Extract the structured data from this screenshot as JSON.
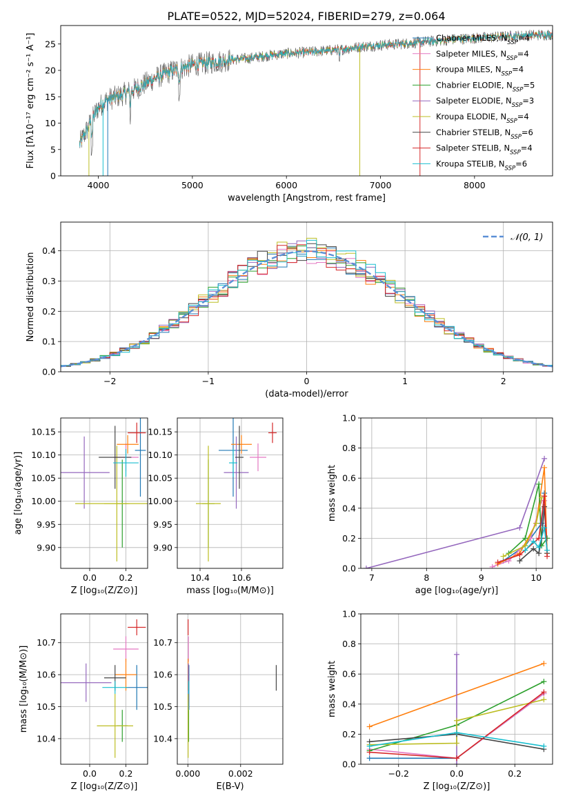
{
  "title": "PLATE=0522, MJD=52024, FIBERID=279, z=0.064",
  "colors": {
    "chabrier_miles": "#1f77b4",
    "salpeter_miles": "#e377c2",
    "kroupa_miles": "#ff7f0e",
    "chabrier_elodie": "#2ca02c",
    "salpeter_elodie": "#9467bd",
    "kroupa_elodie": "#bcbd22",
    "chabrier_stelib": "#444444",
    "salpeter_stelib": "#d62728",
    "kroupa_stelib": "#17becf"
  },
  "chart_data": [
    {
      "id": "spectrum",
      "type": "line",
      "xlabel": "wavelength [Angstrom, rest frame]",
      "ylabel": "Flux [fλ10⁻¹⁷ erg cm⁻² s⁻¹ A⁻¹]",
      "xlim": [
        3600,
        8830
      ],
      "ylim": [
        0,
        28.5
      ],
      "xticks": [
        4000,
        5000,
        6000,
        7000,
        8000
      ],
      "yticks": [
        0,
        5,
        10,
        15,
        20,
        25
      ],
      "legend_position": "right",
      "continuum": {
        "x": [
          3800,
          3900,
          4000,
          4100,
          4200,
          4400,
          4600,
          4800,
          5000,
          5200,
          5400,
          5600,
          5800,
          6000,
          6200,
          6400,
          6600,
          6800,
          7000,
          7200,
          7400,
          7600,
          7800,
          8000,
          8200,
          8400,
          8800
        ],
        "y": [
          6,
          9.5,
          13,
          14.5,
          15,
          16.5,
          18.5,
          20,
          21,
          21.5,
          22,
          22.3,
          22.8,
          23.2,
          23.4,
          23.7,
          24,
          24.5,
          24.8,
          25,
          25.3,
          25.6,
          25.9,
          26.1,
          26.3,
          26.5,
          26.8
        ]
      },
      "series": [
        {
          "key": "chabrier_miles",
          "name": "Chabrier MILES, N",
          "sub": "SSP",
          "eq": "=4"
        },
        {
          "key": "salpeter_miles",
          "name": "Salpeter MILES, N",
          "sub": "SSP",
          "eq": "=4"
        },
        {
          "key": "kroupa_miles",
          "name": "Kroupa MILES, N",
          "sub": "SSP",
          "eq": "=4"
        },
        {
          "key": "chabrier_elodie",
          "name": "Chabrier ELODIE, N",
          "sub": "SSP",
          "eq": "=5"
        },
        {
          "key": "salpeter_elodie",
          "name": "Salpeter ELODIE, N",
          "sub": "SSP",
          "eq": "=3"
        },
        {
          "key": "kroupa_elodie",
          "name": "Kroupa ELODIE, N",
          "sub": "SSP",
          "eq": "=4"
        },
        {
          "key": "chabrier_stelib",
          "name": "Chabrier STELIB, N",
          "sub": "SSP",
          "eq": "=6"
        },
        {
          "key": "salpeter_stelib",
          "name": "Salpeter STELIB, N",
          "sub": "SSP",
          "eq": "=4"
        },
        {
          "key": "kroupa_stelib",
          "name": "Kroupa STELIB, N",
          "sub": "SSP",
          "eq": "=6"
        }
      ]
    },
    {
      "id": "residuals",
      "type": "line",
      "xlabel": "(data-model)/error",
      "ylabel": "Normed distribution",
      "xlim": [
        -2.5,
        2.5
      ],
      "ylim": [
        0,
        0.495
      ],
      "xticks": [
        -2,
        -1,
        0,
        1,
        2
      ],
      "yticks": [
        0.0,
        0.1,
        0.2,
        0.3,
        0.4
      ],
      "grid": true,
      "bin_width": 0.1,
      "reference": {
        "name": "𝒩(0, 1)",
        "mean": 0,
        "sigma": 1,
        "color": "#5b8fd6"
      },
      "legend_position": "top-right"
    },
    {
      "id": "age_vs_z",
      "type": "scatter",
      "xlabel": "Z [log₁₀(Z/Z⊙)]",
      "ylabel": "age  [log₁₀(age/yr)]",
      "xlim": [
        -0.16,
        0.32
      ],
      "ylim": [
        9.855,
        10.18
      ],
      "xticks": [
        0.0,
        0.2
      ],
      "yticks": [
        9.9,
        9.95,
        10.0,
        10.05,
        10.1,
        10.15
      ],
      "grid": true,
      "points": [
        {
          "key": "chabrier_miles",
          "x": 0.28,
          "xerr": 0.03,
          "y": 10.11,
          "yerr": 0.1
        },
        {
          "key": "salpeter_miles",
          "x": 0.2,
          "xerr": 0.07,
          "y": 10.095,
          "yerr": 0.03
        },
        {
          "key": "kroupa_miles",
          "x": 0.21,
          "xerr": 0.06,
          "y": 10.123,
          "yerr": 0.02
        },
        {
          "key": "chabrier_elodie",
          "x": 0.18,
          "xerr": 0.03,
          "y": 9.995,
          "yerr": 0.095
        },
        {
          "key": "salpeter_elodie",
          "x": -0.03,
          "xerr": 0.14,
          "y": 10.062,
          "yerr": 0.078
        },
        {
          "key": "kroupa_elodie",
          "x": 0.15,
          "xerr": 0.07,
          "y": 9.995,
          "yerr": 0.125
        },
        {
          "key": "chabrier_stelib",
          "x": 0.14,
          "xerr": 0.09,
          "y": 10.095,
          "yerr": 0.068
        },
        {
          "key": "salpeter_stelib",
          "x": 0.26,
          "xerr": 0.05,
          "y": 10.148,
          "yerr": 0.022
        },
        {
          "key": "kroupa_stelib",
          "x": 0.2,
          "xerr": 0.07,
          "y": 10.083,
          "yerr": 0.03
        },
        {
          "key": "kroupa_elodie",
          "x": 0.15,
          "xerr": 0.23,
          "y": 9.995,
          "yerr": 0.0
        }
      ]
    },
    {
      "id": "age_vs_mass",
      "type": "scatter",
      "xlabel": "mass [log₁₀(M/M⊙)]",
      "xlim": [
        10.29,
        10.8
      ],
      "ylim": [
        9.855,
        10.18
      ],
      "xticks": [
        10.4,
        10.6
      ],
      "yticks": [
        9.9,
        9.95,
        10.0,
        10.05,
        10.1,
        10.15
      ],
      "grid": true,
      "points": [
        {
          "key": "chabrier_miles",
          "x": 10.56,
          "xerr": 0.07,
          "y": 10.11,
          "yerr": 0.1
        },
        {
          "key": "salpeter_miles",
          "x": 10.68,
          "xerr": 0.04,
          "y": 10.095,
          "yerr": 0.03
        },
        {
          "key": "kroupa_miles",
          "x": 10.6,
          "xerr": 0.05,
          "y": 10.123,
          "yerr": 0.02
        },
        {
          "key": "chabrier_elodie",
          "x": 10.44,
          "xerr": 0.03,
          "y": 9.995,
          "yerr": 0.095
        },
        {
          "key": "salpeter_elodie",
          "x": 10.575,
          "xerr": 0.06,
          "y": 10.062,
          "yerr": 0.078
        },
        {
          "key": "kroupa_elodie",
          "x": 10.44,
          "xerr": 0.06,
          "y": 9.995,
          "yerr": 0.125
        },
        {
          "key": "chabrier_stelib",
          "x": 10.59,
          "xerr": 0.02,
          "y": 10.095,
          "yerr": 0.068
        },
        {
          "key": "salpeter_stelib",
          "x": 10.75,
          "xerr": 0.02,
          "y": 10.148,
          "yerr": 0.022
        },
        {
          "key": "kroupa_stelib",
          "x": 10.56,
          "xerr": 0.02,
          "y": 10.083,
          "yerr": 0.03
        }
      ]
    },
    {
      "id": "weight_vs_age",
      "type": "line",
      "xlabel": "age  [log₁₀(age/yr)]",
      "ylabel": "mass weight",
      "xlim": [
        6.8,
        10.3
      ],
      "ylim": [
        0,
        1.0
      ],
      "xticks": [
        7,
        8,
        9,
        10
      ],
      "yticks": [
        0.0,
        0.2,
        0.4,
        0.6,
        0.8,
        1.0
      ],
      "grid": true,
      "series": [
        {
          "key": "chabrier_miles",
          "x": [
            9.4,
            9.8,
            10.1,
            10.15
          ],
          "y": [
            0.05,
            0.15,
            0.3,
            0.5
          ]
        },
        {
          "key": "salpeter_miles",
          "x": [
            9.2,
            9.5,
            9.9,
            10.1,
            10.15
          ],
          "y": [
            0.01,
            0.05,
            0.2,
            0.45,
            0.45
          ]
        },
        {
          "key": "kroupa_miles",
          "x": [
            9.3,
            9.7,
            10.0,
            10.15,
            10.2
          ],
          "y": [
            0.03,
            0.1,
            0.3,
            0.67,
            0.1
          ]
        },
        {
          "key": "chabrier_elodie",
          "x": [
            9.5,
            9.8,
            10.05,
            10.1,
            10.2
          ],
          "y": [
            0.1,
            0.2,
            0.56,
            0.15,
            0.2
          ]
        },
        {
          "key": "salpeter_elodie",
          "x": [
            6.9,
            9.7,
            10.15
          ],
          "y": [
            0.0,
            0.27,
            0.73
          ]
        },
        {
          "key": "kroupa_elodie",
          "x": [
            9.4,
            9.8,
            10.0,
            10.1
          ],
          "y": [
            0.08,
            0.15,
            0.3,
            0.47
          ]
        },
        {
          "key": "chabrier_stelib",
          "x": [
            9.7,
            9.95,
            10.05,
            10.1,
            10.15,
            10.2
          ],
          "y": [
            0.05,
            0.13,
            0.1,
            0.2,
            0.41,
            0.1
          ]
        },
        {
          "key": "salpeter_stelib",
          "x": [
            9.3,
            9.7,
            10.05,
            10.15,
            10.2
          ],
          "y": [
            0.04,
            0.09,
            0.2,
            0.48,
            0.08
          ]
        },
        {
          "key": "kroupa_stelib",
          "x": [
            9.8,
            9.95,
            10.05,
            10.15,
            10.2
          ],
          "y": [
            0.12,
            0.18,
            0.14,
            0.27,
            0.12
          ]
        }
      ]
    },
    {
      "id": "mass_vs_z",
      "type": "scatter",
      "xlabel": "Z [log₁₀(Z/Z⊙)]",
      "ylabel": "mass [log₁₀(M/M⊙)]",
      "xlim": [
        -0.16,
        0.32
      ],
      "ylim": [
        10.32,
        10.79
      ],
      "xticks": [
        0.0,
        0.2
      ],
      "yticks": [
        10.4,
        10.5,
        10.6,
        10.7
      ],
      "grid": true,
      "points": [
        {
          "key": "chabrier_miles",
          "x": 0.26,
          "xerr": 0.06,
          "y": 10.56,
          "yerr": 0.07
        },
        {
          "key": "salpeter_miles",
          "x": 0.2,
          "xerr": 0.07,
          "y": 10.68,
          "yerr": 0.04
        },
        {
          "key": "kroupa_miles",
          "x": 0.2,
          "xerr": 0.06,
          "y": 10.6,
          "yerr": 0.05
        },
        {
          "key": "chabrier_elodie",
          "x": 0.18,
          "xerr": 0.03,
          "y": 10.44,
          "yerr": 0.05
        },
        {
          "key": "salpeter_elodie",
          "x": -0.02,
          "xerr": 0.14,
          "y": 10.575,
          "yerr": 0.06
        },
        {
          "key": "kroupa_elodie",
          "x": 0.14,
          "xerr": 0.1,
          "y": 10.44,
          "yerr": 0.1
        },
        {
          "key": "chabrier_stelib",
          "x": 0.14,
          "xerr": 0.06,
          "y": 10.59,
          "yerr": 0.04
        },
        {
          "key": "salpeter_stelib",
          "x": 0.26,
          "xerr": 0.05,
          "y": 10.748,
          "yerr": 0.025
        },
        {
          "key": "kroupa_stelib",
          "x": 0.14,
          "xerr": 0.07,
          "y": 10.56,
          "yerr": 0.02
        }
      ]
    },
    {
      "id": "mass_vs_ebv",
      "type": "scatter",
      "xlabel": "E(B-V)",
      "xlim": [
        -0.0004,
        0.0036
      ],
      "ylim": [
        10.32,
        10.79
      ],
      "xticks": [
        0.0,
        0.002
      ],
      "xtick_labels": [
        "0.000",
        "0.002"
      ],
      "yticks": [
        10.4,
        10.5,
        10.6,
        10.7
      ],
      "grid": true,
      "points": [
        {
          "key": "chabrier_miles",
          "x": 4e-05,
          "xerr": 0,
          "y": 10.56,
          "yerr": 0.07
        },
        {
          "key": "salpeter_miles",
          "x": 2e-05,
          "xerr": 0,
          "y": 10.68,
          "yerr": 0.04
        },
        {
          "key": "kroupa_miles",
          "x": 1e-05,
          "xerr": 0,
          "y": 10.6,
          "yerr": 0.05
        },
        {
          "key": "chabrier_elodie",
          "x": 3e-05,
          "xerr": 0,
          "y": 10.44,
          "yerr": 0.05
        },
        {
          "key": "salpeter_elodie",
          "x": 2e-05,
          "xerr": 0,
          "y": 10.575,
          "yerr": 0.06
        },
        {
          "key": "kroupa_elodie",
          "x": 1e-05,
          "xerr": 0,
          "y": 10.44,
          "yerr": 0.1
        },
        {
          "key": "chabrier_stelib",
          "x": 0.00335,
          "xerr": 0,
          "y": 10.59,
          "yerr": 0.04
        },
        {
          "key": "salpeter_stelib",
          "x": 1e-05,
          "xerr": 0,
          "y": 10.748,
          "yerr": 0.025
        },
        {
          "key": "kroupa_stelib",
          "x": 3e-05,
          "xerr": 0,
          "y": 10.56,
          "yerr": 0.02
        }
      ]
    },
    {
      "id": "weight_vs_z",
      "type": "line",
      "xlabel": "Z [log₁₀(Z/Z⊙)]",
      "ylabel": "mass weight",
      "xlim": [
        -0.33,
        0.33
      ],
      "ylim": [
        0,
        1.0
      ],
      "xticks": [
        -0.2,
        0.0,
        0.2
      ],
      "yticks": [
        0.0,
        0.2,
        0.4,
        0.6,
        0.8,
        1.0
      ],
      "grid": true,
      "series": [
        {
          "key": "chabrier_miles",
          "x": [
            -0.3,
            0.0,
            0.3
          ],
          "y": [
            0.04,
            0.04,
            0.47
          ]
        },
        {
          "key": "salpeter_miles",
          "x": [
            -0.3,
            0.0,
            0.3
          ],
          "y": [
            0.1,
            0.04,
            0.47
          ]
        },
        {
          "key": "kroupa_miles",
          "x": [
            -0.3,
            0.3
          ],
          "y": [
            0.25,
            0.67
          ]
        },
        {
          "key": "chabrier_elodie",
          "x": [
            -0.3,
            0.0,
            0.3
          ],
          "y": [
            0.09,
            0.26,
            0.55
          ]
        },
        {
          "key": "salpeter_elodie",
          "x": [
            0.0,
            0.0
          ],
          "y": [
            0.0,
            0.73
          ]
        },
        {
          "key": "kroupa_elodie",
          "x": [
            -0.3,
            0.0,
            0.0,
            0.3
          ],
          "y": [
            0.13,
            0.14,
            0.29,
            0.43
          ]
        },
        {
          "key": "chabrier_stelib",
          "x": [
            -0.3,
            0.0,
            0.3
          ],
          "y": [
            0.15,
            0.2,
            0.1
          ]
        },
        {
          "key": "salpeter_stelib",
          "x": [
            -0.3,
            0.0,
            0.3
          ],
          "y": [
            0.08,
            0.04,
            0.48
          ]
        },
        {
          "key": "kroupa_stelib",
          "x": [
            -0.3,
            0.0,
            0.3
          ],
          "y": [
            0.12,
            0.21,
            0.12
          ]
        }
      ]
    }
  ]
}
